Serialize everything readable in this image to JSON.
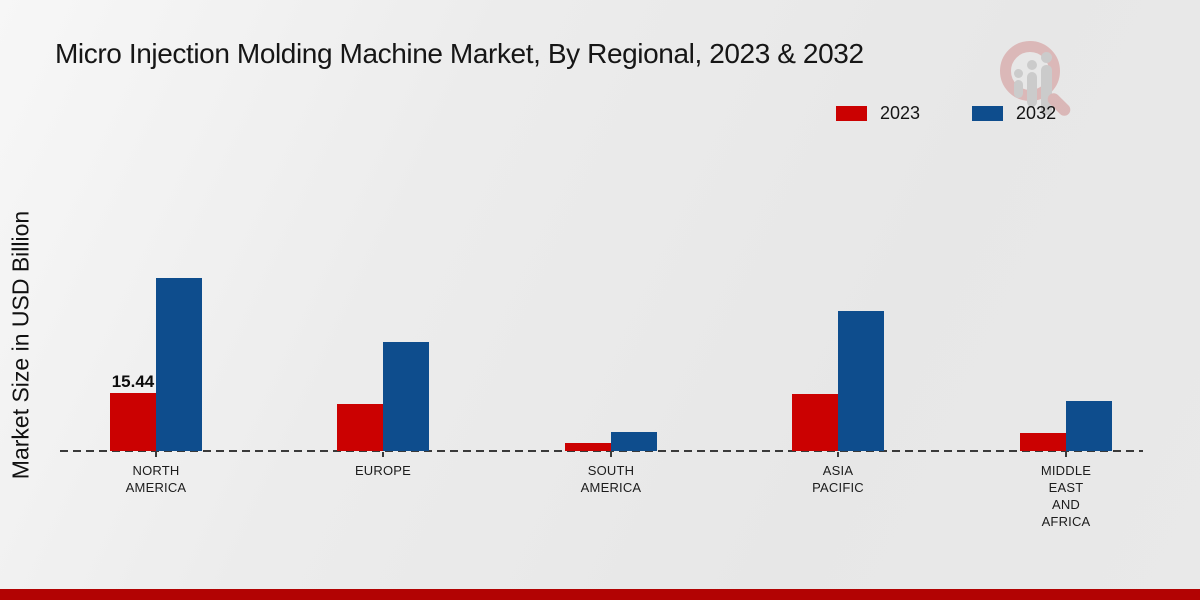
{
  "title": "Micro Injection Molding Machine Market, By Regional, 2023 & 2032",
  "y_axis_label": "Market Size in USD Billion",
  "legend": {
    "position": "top-right",
    "items": [
      {
        "label": "2023",
        "color": "#cb0101"
      },
      {
        "label": "2032",
        "color": "#0e4d8d"
      }
    ]
  },
  "colors": {
    "bar_2023": "#cb0101",
    "bar_2032": "#0e4d8d",
    "footer_strip": "#b20303",
    "axis": "#3a3a3a",
    "background": "#eaeaea"
  },
  "watermark": {
    "name": "market-research-logo"
  },
  "chart_data": {
    "type": "bar",
    "title": "Micro Injection Molding Machine Market, By Regional, 2023 & 2032",
    "xlabel": "",
    "ylabel": "Market Size in USD Billion",
    "categories": [
      "North America",
      "Europe",
      "South America",
      "Asia Pacific",
      "Middle East and Africa"
    ],
    "category_lines": [
      [
        "NORTH",
        "AMERICA"
      ],
      [
        "EUROPE"
      ],
      [
        "SOUTH",
        "AMERICA"
      ],
      [
        "ASIA",
        "PACIFIC"
      ],
      [
        "MIDDLE",
        "EAST",
        "AND",
        "AFRICA"
      ]
    ],
    "series": [
      {
        "name": "2023",
        "color": "#cb0101",
        "values": [
          15.44,
          12.5,
          2.1,
          15.2,
          4.8
        ]
      },
      {
        "name": "2032",
        "color": "#0e4d8d",
        "values": [
          46.1,
          29.0,
          5.1,
          37.3,
          13.3
        ]
      }
    ],
    "annotation": {
      "text": "15.44",
      "series_index": 0,
      "category_index": 0
    },
    "y_axis_visible": false,
    "grid": false,
    "baseline_style": "dashed",
    "ylim": [
      0,
      50
    ],
    "legend_position": "top-right"
  }
}
